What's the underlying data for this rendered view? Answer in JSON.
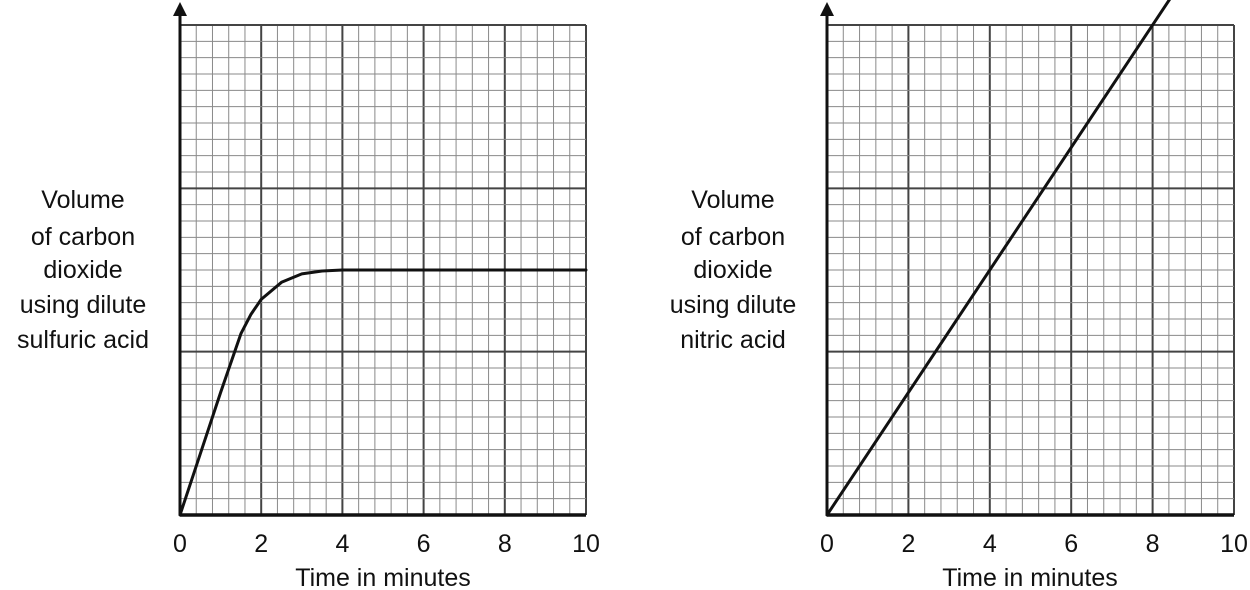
{
  "colors": {
    "line": "#111111",
    "grid_minor": "#8a8a8a",
    "grid_major": "#444444",
    "background": "#ffffff"
  },
  "chart_data": [
    {
      "type": "line",
      "title": "",
      "xlabel": "Time in minutes",
      "ylabel_lines": [
        "Volume",
        "of carbon",
        "dioxide",
        "using dilute",
        "sulfuric acid"
      ],
      "xlim": [
        0,
        10
      ],
      "ylim": [
        0,
        100
      ],
      "xticks": [
        "0",
        "2",
        "4",
        "6",
        "8",
        "10"
      ],
      "grid": true,
      "series": [
        {
          "x": [
            0,
            0.5,
            1.0,
            1.5,
            1.75,
            2.0,
            2.5,
            3.0,
            3.5,
            4.0,
            6.0,
            8.0,
            10.0
          ],
          "y": [
            0,
            12.5,
            25,
            37,
            41,
            44,
            47.5,
            49.2,
            49.8,
            50,
            50,
            50,
            50
          ]
        }
      ]
    },
    {
      "type": "line",
      "title": "",
      "xlabel": "Time in minutes",
      "ylabel_lines": [
        "Volume",
        "of carbon",
        "dioxide",
        "using dilute",
        "nitric acid"
      ],
      "xlim": [
        0,
        10
      ],
      "ylim": [
        0,
        100
      ],
      "xticks": [
        "0",
        "2",
        "4",
        "6",
        "8",
        "10"
      ],
      "grid": true,
      "series": [
        {
          "x": [
            0,
            10
          ],
          "y": [
            0,
            125
          ]
        }
      ]
    }
  ]
}
